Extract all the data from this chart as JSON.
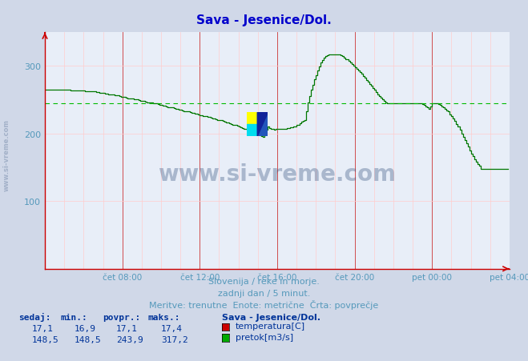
{
  "title": "Sava - Jesenice/Dol.",
  "title_color": "#0000cc",
  "bg_color": "#d0d8e8",
  "plot_bg_color": "#e8eef8",
  "grid_color_major": "#cc3333",
  "grid_color_minor": "#ffcccc",
  "axis_color": "#cc0000",
  "line_color": "#007700",
  "avg_line_color": "#00bb00",
  "avg_line_value": 243.9,
  "ylim": [
    0,
    350
  ],
  "yticks": [
    100,
    200,
    300
  ],
  "xlabel_color": "#5599bb",
  "text_color": "#003399",
  "watermark_color": "#1a3a6a",
  "footnote_line1": "Slovenija / reke in morje.",
  "footnote_line2": "zadnji dan / 5 minut.",
  "footnote_line3": "Meritve: trenutne  Enote: metrične  Črta: povprečje",
  "legend_title": "Sava - Jesenice/Dol.",
  "legend_items": [
    {
      "label": "temperatura[C]",
      "color": "#cc0000"
    },
    {
      "label": "pretok[m3/s]",
      "color": "#00aa00"
    }
  ],
  "table_headers": [
    "sedaj:",
    "min.:",
    "povpr.:",
    "maks.:"
  ],
  "table_rows": [
    [
      "17,1",
      "16,9",
      "17,1",
      "17,4"
    ],
    [
      "148,5",
      "148,5",
      "243,9",
      "317,2"
    ]
  ],
  "xtick_labels": [
    "čet 08:00",
    "čet 12:00",
    "čet 16:00",
    "čet 20:00",
    "pet 00:00",
    "pet 04:00"
  ],
  "xtick_positions": [
    48,
    96,
    144,
    192,
    240,
    288
  ],
  "n_points": 289,
  "flow_keypoints": [
    [
      0,
      264
    ],
    [
      5,
      265
    ],
    [
      10,
      264
    ],
    [
      20,
      263
    ],
    [
      30,
      262
    ],
    [
      40,
      258
    ],
    [
      50,
      253
    ],
    [
      60,
      248
    ],
    [
      70,
      243
    ],
    [
      80,
      237
    ],
    [
      90,
      231
    ],
    [
      100,
      225
    ],
    [
      110,
      218
    ],
    [
      115,
      214
    ],
    [
      120,
      210
    ],
    [
      125,
      205
    ],
    [
      130,
      200
    ],
    [
      135,
      195
    ],
    [
      138,
      210
    ],
    [
      140,
      207
    ],
    [
      142,
      205
    ],
    [
      144,
      207
    ],
    [
      146,
      207
    ],
    [
      148,
      207
    ],
    [
      149,
      207
    ],
    [
      150,
      208
    ],
    [
      151,
      208
    ],
    [
      152,
      209
    ],
    [
      153,
      209
    ],
    [
      155,
      210
    ],
    [
      158,
      215
    ],
    [
      161,
      220
    ],
    [
      163,
      245
    ],
    [
      165,
      265
    ],
    [
      167,
      280
    ],
    [
      169,
      293
    ],
    [
      171,
      305
    ],
    [
      173,
      312
    ],
    [
      175,
      315
    ],
    [
      177,
      317
    ],
    [
      179,
      317
    ],
    [
      181,
      316
    ],
    [
      183,
      315
    ],
    [
      185,
      312
    ],
    [
      188,
      307
    ],
    [
      191,
      300
    ],
    [
      194,
      293
    ],
    [
      197,
      285
    ],
    [
      200,
      276
    ],
    [
      203,
      267
    ],
    [
      206,
      258
    ],
    [
      209,
      250
    ],
    [
      212,
      244
    ],
    [
      215,
      244
    ],
    [
      218,
      244
    ],
    [
      221,
      244
    ],
    [
      224,
      244
    ],
    [
      226,
      244
    ],
    [
      228,
      244
    ],
    [
      230,
      244
    ],
    [
      232,
      244
    ],
    [
      234,
      243
    ],
    [
      236,
      240
    ],
    [
      238,
      236
    ],
    [
      240,
      244
    ],
    [
      242,
      244
    ],
    [
      244,
      243
    ],
    [
      246,
      240
    ],
    [
      248,
      236
    ],
    [
      250,
      232
    ],
    [
      252,
      225
    ],
    [
      254,
      218
    ],
    [
      256,
      210
    ],
    [
      258,
      200
    ],
    [
      260,
      190
    ],
    [
      262,
      180
    ],
    [
      264,
      170
    ],
    [
      266,
      162
    ],
    [
      268,
      155
    ],
    [
      270,
      148
    ],
    [
      272,
      148
    ],
    [
      274,
      148
    ],
    [
      276,
      148
    ],
    [
      278,
      148
    ],
    [
      280,
      148
    ],
    [
      282,
      148
    ],
    [
      284,
      148
    ],
    [
      286,
      148
    ],
    [
      288,
      148
    ]
  ]
}
